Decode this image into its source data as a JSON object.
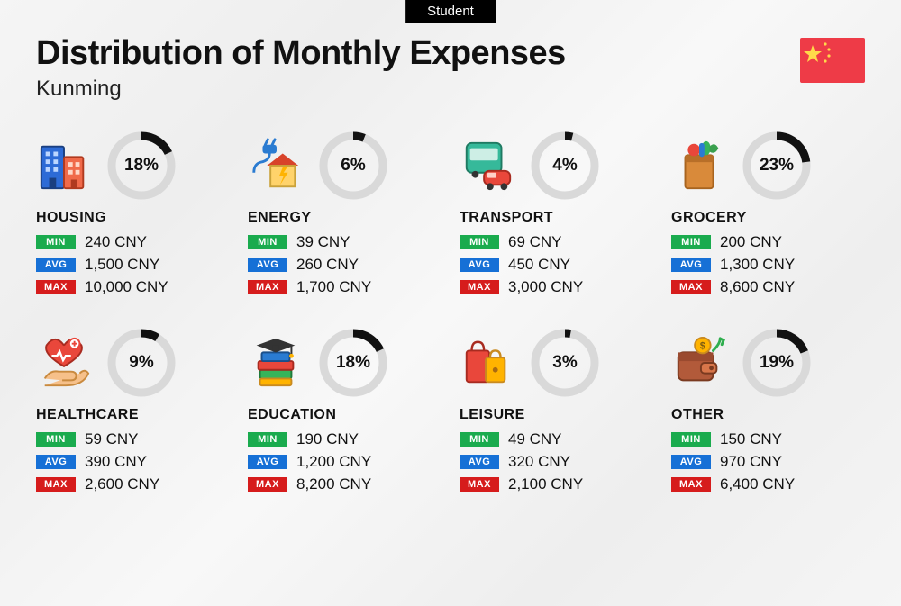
{
  "badge": "Student",
  "title": "Distribution of Monthly Expenses",
  "subtitle": "Kunming",
  "currency": "CNY",
  "labels": {
    "min": "MIN",
    "avg": "AVG",
    "max": "MAX"
  },
  "colors": {
    "min": "#1aab4e",
    "avg": "#1670d6",
    "max": "#d61c1c",
    "donut_track": "#d9d9d9",
    "donut_fill": "#111111",
    "badge_bg": "#000000",
    "flag_bg": "#ee3b47",
    "flag_star": "#ffd94a"
  },
  "donut": {
    "stroke_width": 9,
    "radius": 33
  },
  "categories": [
    {
      "key": "housing",
      "name": "HOUSING",
      "percent": 18,
      "min": "240",
      "avg": "1,500",
      "max": "10,000",
      "icon": "buildings"
    },
    {
      "key": "energy",
      "name": "ENERGY",
      "percent": 6,
      "min": "39",
      "avg": "260",
      "max": "1,700",
      "icon": "plug-house"
    },
    {
      "key": "transport",
      "name": "TRANSPORT",
      "percent": 4,
      "min": "69",
      "avg": "450",
      "max": "3,000",
      "icon": "bus-car"
    },
    {
      "key": "grocery",
      "name": "GROCERY",
      "percent": 23,
      "min": "200",
      "avg": "1,300",
      "max": "8,600",
      "icon": "grocery-bag"
    },
    {
      "key": "healthcare",
      "name": "HEALTHCARE",
      "percent": 9,
      "min": "59",
      "avg": "390",
      "max": "2,600",
      "icon": "heart-hand"
    },
    {
      "key": "education",
      "name": "EDUCATION",
      "percent": 18,
      "min": "190",
      "avg": "1,200",
      "max": "8,200",
      "icon": "grad-books"
    },
    {
      "key": "leisure",
      "name": "LEISURE",
      "percent": 3,
      "min": "49",
      "avg": "320",
      "max": "2,100",
      "icon": "shopping-bags"
    },
    {
      "key": "other",
      "name": "OTHER",
      "percent": 19,
      "min": "150",
      "avg": "970",
      "max": "6,400",
      "icon": "wallet-arrow"
    }
  ]
}
